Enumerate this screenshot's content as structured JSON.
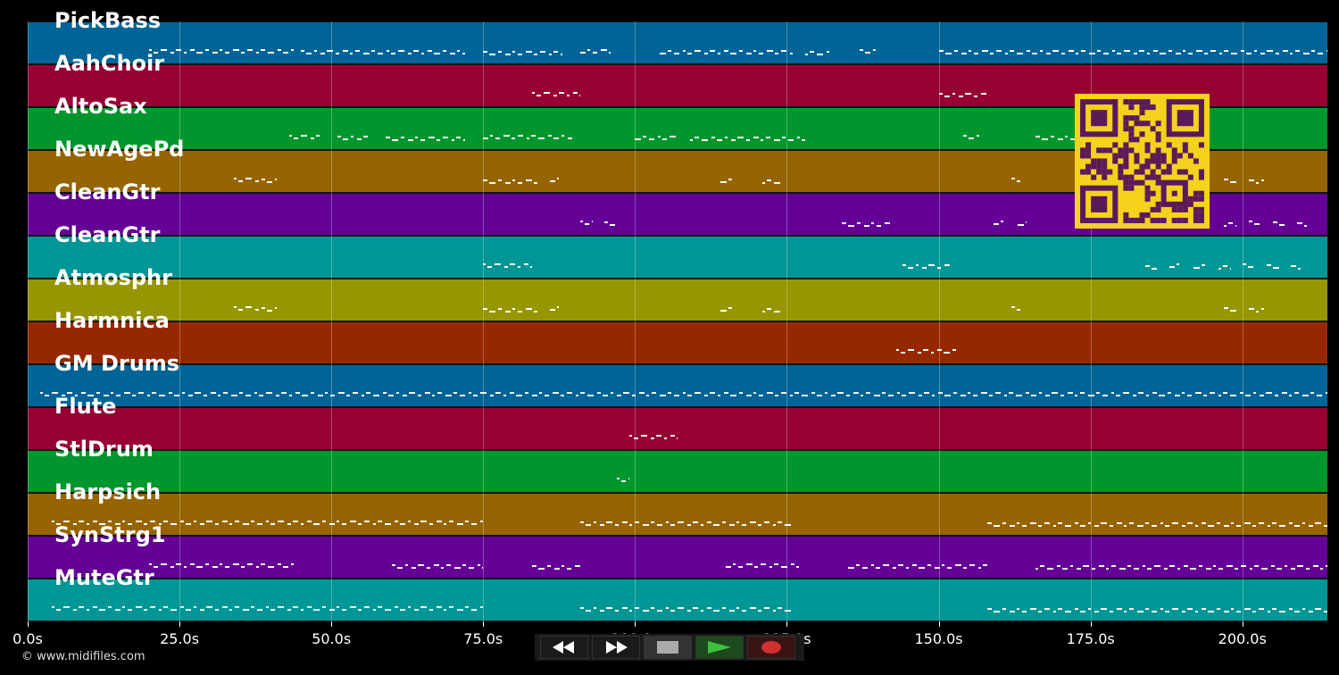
{
  "tracks": [
    {
      "name": "PickBass",
      "color": "#006496"
    },
    {
      "name": "AahChoir",
      "color": "#960032"
    },
    {
      "name": "AltoSax",
      "color": "#00962d"
    },
    {
      "name": "NewAgePd",
      "color": "#966400"
    },
    {
      "name": "CleanGtr",
      "color": "#640096"
    },
    {
      "name": "CleanGtr",
      "color": "#009696"
    },
    {
      "name": "Atmosphr",
      "color": "#969600"
    },
    {
      "name": "Harmnica",
      "color": "#962800"
    },
    {
      "name": "GM Drums",
      "color": "#006496"
    },
    {
      "name": "Flute",
      "color": "#960032"
    },
    {
      "name": "StlDrum",
      "color": "#00962d"
    },
    {
      "name": "Harpsich",
      "color": "#966400"
    },
    {
      "name": "SynStrg1",
      "color": "#640096"
    },
    {
      "name": "MuteGtr",
      "color": "#009696"
    }
  ],
  "timeline": {
    "ticks": [
      "0.0s",
      "25.0s",
      "50.0s",
      "75.0s",
      "100.0s",
      "125.0s",
      "150.0s",
      "175.0s",
      "200.0s"
    ],
    "tick_seconds": [
      0,
      25,
      50,
      75,
      100,
      125,
      150,
      175,
      200
    ],
    "duration_seconds": 214
  },
  "controls": {
    "rewind_icon": "rewind-icon",
    "fast_forward_icon": "fast-forward-icon",
    "stop_icon": "stop-icon",
    "play_icon": "play-icon",
    "record_icon": "record-icon",
    "play_color": "#3fbf3f",
    "record_color": "#d03030"
  },
  "copyright": "© www.midifiles.com",
  "qr_code": {
    "icon": "qr-code-icon",
    "color": "#f5d21b",
    "dark": "#5a1a5a"
  },
  "note_segments": [
    [
      [
        20,
        44
      ],
      [
        45,
        72
      ],
      [
        75,
        88
      ],
      [
        91,
        96
      ],
      [
        104,
        126
      ],
      [
        128,
        132
      ],
      [
        137,
        140
      ],
      [
        150,
        214
      ]
    ],
    [
      [
        83,
        91
      ],
      [
        150,
        158
      ]
    ],
    [
      [
        43,
        48
      ],
      [
        51,
        56
      ],
      [
        59,
        72
      ],
      [
        75,
        90
      ],
      [
        100,
        107
      ],
      [
        109,
        128
      ],
      [
        154,
        157
      ],
      [
        166,
        174
      ],
      [
        178,
        181
      ]
    ],
    [
      [
        34,
        38
      ],
      [
        38.5,
        41
      ],
      [
        75,
        84
      ],
      [
        86,
        87.5
      ],
      [
        114,
        116
      ],
      [
        121,
        124
      ],
      [
        162,
        163.5
      ],
      [
        197,
        199
      ],
      [
        201,
        203.5
      ]
    ],
    [
      [
        91,
        93
      ],
      [
        95,
        97
      ],
      [
        134,
        142
      ],
      [
        159,
        161
      ],
      [
        163,
        164.5
      ],
      [
        197,
        199
      ],
      [
        201,
        203
      ],
      [
        205,
        207
      ],
      [
        209,
        211
      ]
    ],
    [
      [
        75,
        83
      ],
      [
        144,
        152
      ],
      [
        184,
        186
      ],
      [
        188,
        190
      ],
      [
        192,
        194
      ],
      [
        196,
        198
      ],
      [
        200,
        202
      ],
      [
        204,
        206
      ],
      [
        208,
        210
      ]
    ],
    [
      [
        34,
        38
      ],
      [
        38.5,
        41
      ],
      [
        75,
        84
      ],
      [
        86,
        87.5
      ],
      [
        114,
        116
      ],
      [
        121,
        124
      ],
      [
        162,
        163.5
      ],
      [
        197,
        199
      ],
      [
        201,
        203.5
      ]
    ],
    [
      [
        143,
        153
      ]
    ],
    [
      [
        2,
        214
      ]
    ],
    [
      [
        99,
        107
      ]
    ],
    [
      [
        97,
        99
      ]
    ],
    [
      [
        4,
        75
      ],
      [
        91,
        126
      ],
      [
        158,
        214
      ]
    ],
    [
      [
        20,
        44
      ],
      [
        60,
        75
      ],
      [
        83,
        91
      ],
      [
        115,
        127
      ],
      [
        135,
        158
      ],
      [
        166,
        214
      ]
    ],
    [
      [
        4,
        75
      ],
      [
        91,
        126
      ],
      [
        158,
        214
      ]
    ]
  ]
}
